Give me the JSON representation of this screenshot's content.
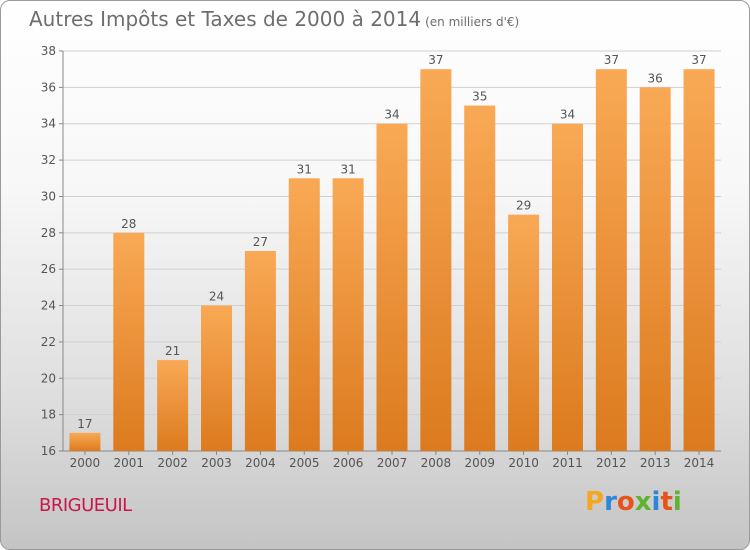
{
  "title": "Autres Impôts et Taxes de 2000 à 2014",
  "title_unit": "(en milliers d'€)",
  "town": "BRIGUEUIL",
  "logo": {
    "text": "Proxiti",
    "letter_colors": [
      "#f5a623",
      "#2e86d8",
      "#e8521b",
      "#5fb330",
      "#2e86d8",
      "#e8521b",
      "#5fb330"
    ]
  },
  "chart_data": {
    "type": "bar",
    "categories": [
      "2000",
      "2001",
      "2002",
      "2003",
      "2004",
      "2005",
      "2006",
      "2007",
      "2008",
      "2009",
      "2010",
      "2011",
      "2012",
      "2013",
      "2014"
    ],
    "values": [
      17,
      28,
      21,
      24,
      27,
      31,
      31,
      34,
      37,
      35,
      29,
      34,
      37,
      36,
      37
    ],
    "ylim": [
      16,
      38
    ],
    "yticks": [
      16,
      18,
      20,
      22,
      24,
      26,
      28,
      30,
      32,
      34,
      36,
      38
    ],
    "grid": true,
    "colors": {
      "bar_light": "#f9a955",
      "bar_dark": "#dc7a1e",
      "grid": "#d0d0d0",
      "text": "#555555"
    }
  }
}
